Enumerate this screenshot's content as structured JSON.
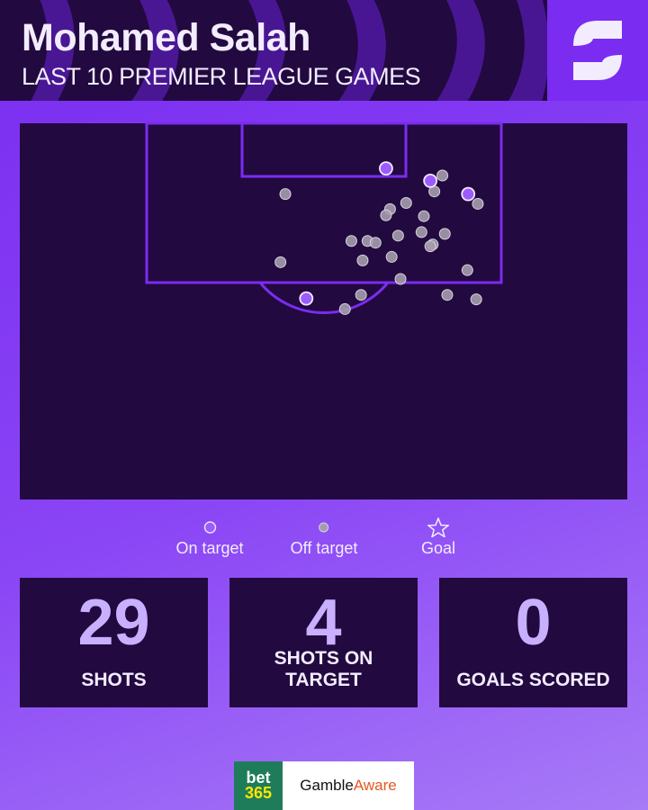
{
  "header": {
    "title": "Mohamed Salah",
    "subtitle": "LAST 10 PREMIER LEAGUE GAMES",
    "logo": "S"
  },
  "colors": {
    "pitch": "#22093f",
    "lines": "#7a2cf0",
    "on_target": "#9b5cff",
    "off_target": "#a59dad",
    "accent": "#c9b0ff"
  },
  "chart_data": {
    "type": "scatter",
    "units": "yards (x across pitch from centre, y distance from goal line)",
    "series": [
      {
        "name": "On target",
        "points": [
          [
            7.7,
            5.1
          ],
          [
            13.2,
            6.5
          ],
          [
            17.9,
            8.0
          ],
          [
            -2.2,
            19.8
          ]
        ]
      },
      {
        "name": "Off target",
        "points": [
          [
            -4.8,
            8.0
          ],
          [
            14.7,
            5.9
          ],
          [
            13.7,
            7.7
          ],
          [
            19.1,
            9.1
          ],
          [
            10.2,
            9.0
          ],
          [
            8.2,
            9.7
          ],
          [
            7.7,
            10.4
          ],
          [
            12.4,
            10.5
          ],
          [
            9.2,
            12.7
          ],
          [
            12.1,
            12.3
          ],
          [
            15.0,
            12.5
          ],
          [
            13.5,
            13.7
          ],
          [
            13.2,
            13.9
          ],
          [
            3.4,
            13.3
          ],
          [
            5.4,
            13.3
          ],
          [
            6.4,
            13.5
          ],
          [
            4.8,
            15.5
          ],
          [
            8.4,
            15.1
          ],
          [
            -5.4,
            15.7
          ],
          [
            9.5,
            17.6
          ],
          [
            17.8,
            16.6
          ],
          [
            4.6,
            19.4
          ],
          [
            2.6,
            21.0
          ],
          [
            15.3,
            19.4
          ],
          [
            18.9,
            19.9
          ]
        ]
      },
      {
        "name": "Goal",
        "points": []
      }
    ]
  },
  "legend": [
    {
      "label": "On target",
      "icon": "circle-purple"
    },
    {
      "label": "Off target",
      "icon": "circle-grey"
    },
    {
      "label": "Goal",
      "icon": "star"
    }
  ],
  "stats": [
    {
      "value": "29",
      "label": "SHOTS"
    },
    {
      "value": "4",
      "label": "SHOTS ON TARGET"
    },
    {
      "value": "0",
      "label": "GOALS SCORED"
    }
  ],
  "sponsor": {
    "bet_top": "bet",
    "bet_bottom": "365",
    "ga_1": "Gamble",
    "ga_2": "Aware"
  }
}
